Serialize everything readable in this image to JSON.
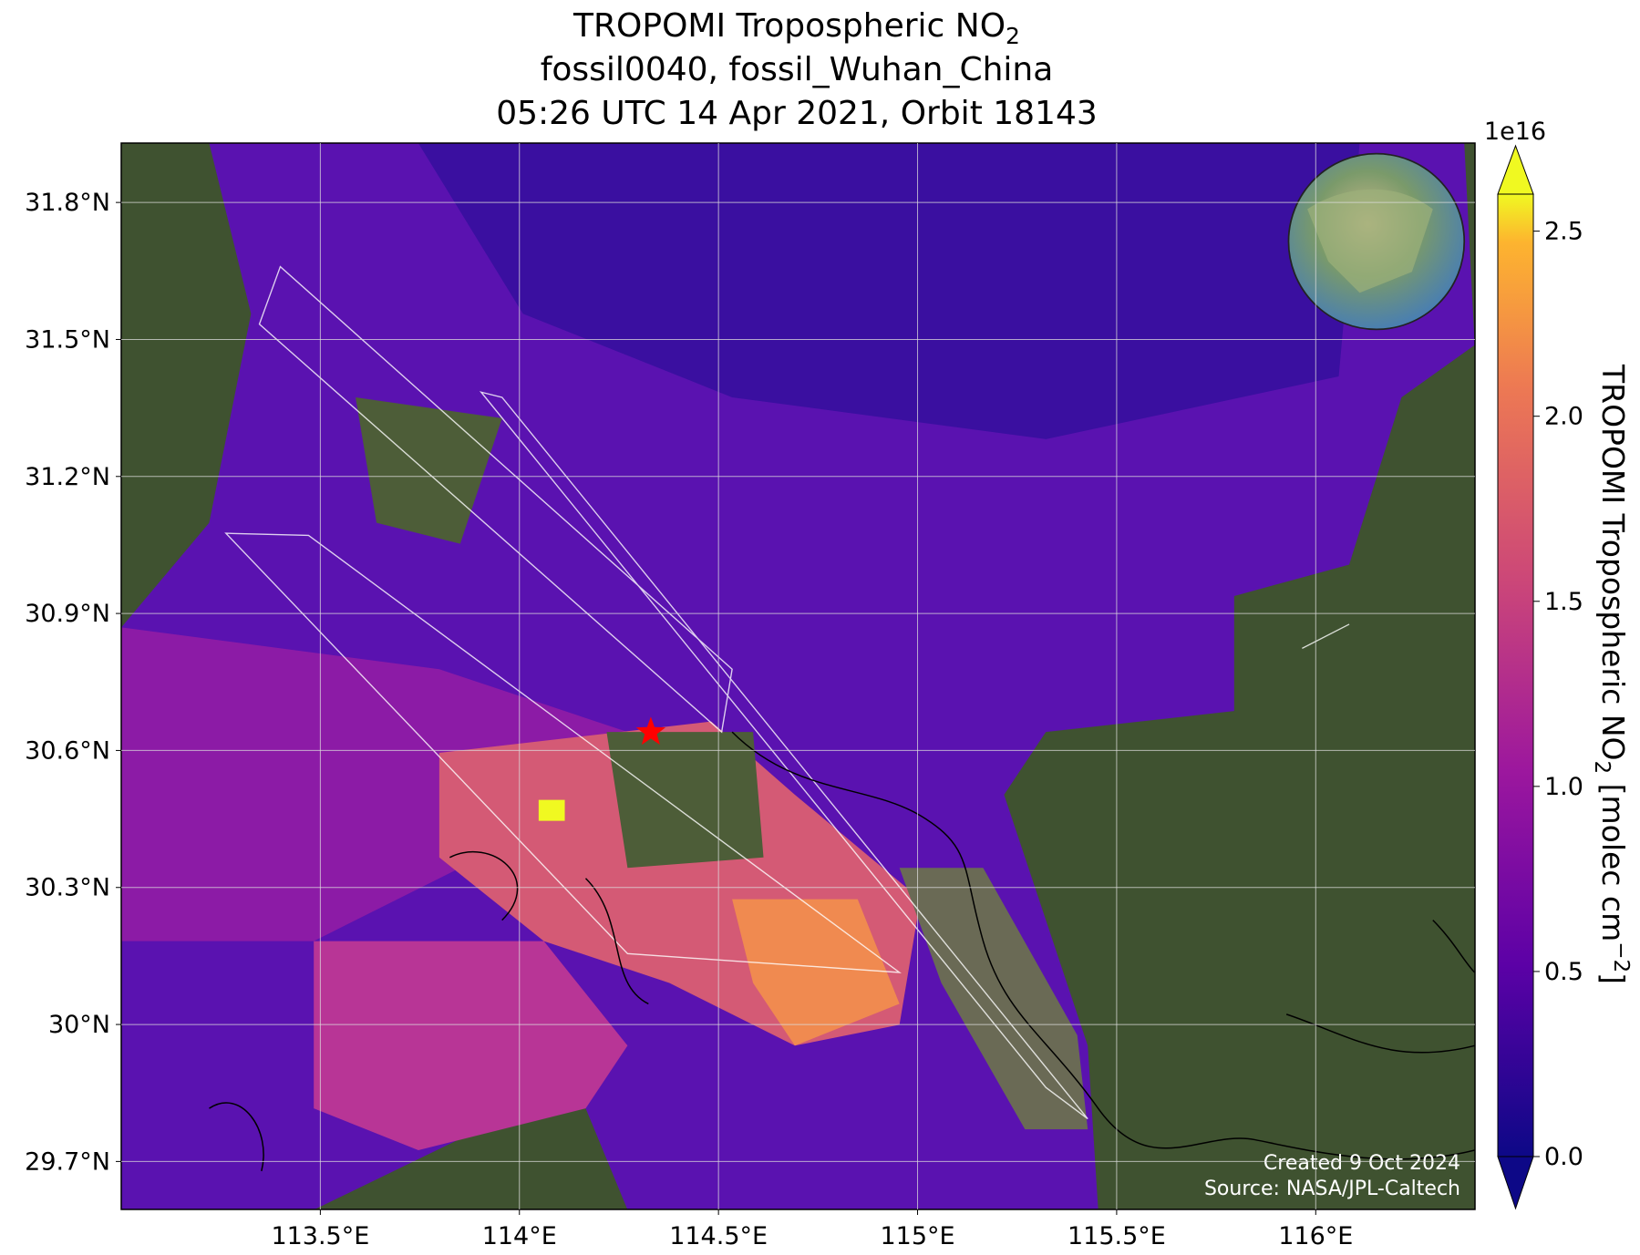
{
  "chart_data": {
    "type": "map",
    "title": {
      "line1": "TROPOMI Tropospheric NO",
      "line1_sub": "2",
      "line2": "fossil0040, fossil_Wuhan_China",
      "line3": "05:26 UTC 14 Apr 2021, Orbit 18143"
    },
    "xlim": [
      113.0,
      116.4
    ],
    "ylim": [
      29.595,
      31.93
    ],
    "xticks": [
      {
        "value": 113.5,
        "label": "113.5°E"
      },
      {
        "value": 114,
        "label": "114°E"
      },
      {
        "value": 114.5,
        "label": "114.5°E"
      },
      {
        "value": 115,
        "label": "115°E"
      },
      {
        "value": 115.5,
        "label": "115.5°E"
      },
      {
        "value": 116,
        "label": "116°E"
      }
    ],
    "yticks": [
      {
        "value": 29.7,
        "label": "29.7°N"
      },
      {
        "value": 30,
        "label": "30°N"
      },
      {
        "value": 30.3,
        "label": "30.3°N"
      },
      {
        "value": 30.6,
        "label": "30.6°N"
      },
      {
        "value": 30.9,
        "label": "30.9°N"
      },
      {
        "value": 31.2,
        "label": "31.2°N"
      },
      {
        "value": 31.5,
        "label": "31.5°N"
      },
      {
        "value": 31.8,
        "label": "31.8°N"
      }
    ],
    "grid": true,
    "site": {
      "lon": 114.33,
      "lat": 30.64,
      "color": "#ff0000"
    },
    "colorbar": {
      "lim": [
        0,
        2.6
      ],
      "offset": "1e16",
      "ticks": [
        {
          "value": 0,
          "label": "0.0"
        },
        {
          "value": 0.5,
          "label": "0.5"
        },
        {
          "value": 1,
          "label": "1.0"
        },
        {
          "value": 1.5,
          "label": "1.5"
        },
        {
          "value": 2,
          "label": "2.0"
        },
        {
          "value": 2.5,
          "label": "2.5"
        }
      ],
      "label": {
        "main": "TROPOMI Tropospheric NO",
        "sub": "2",
        "unit": " [molec cm",
        "sup": "−2",
        "end": "]"
      }
    },
    "credits": [
      "Created 9 Oct 2024",
      "Source: NASA/JPL-Caltech"
    ]
  }
}
